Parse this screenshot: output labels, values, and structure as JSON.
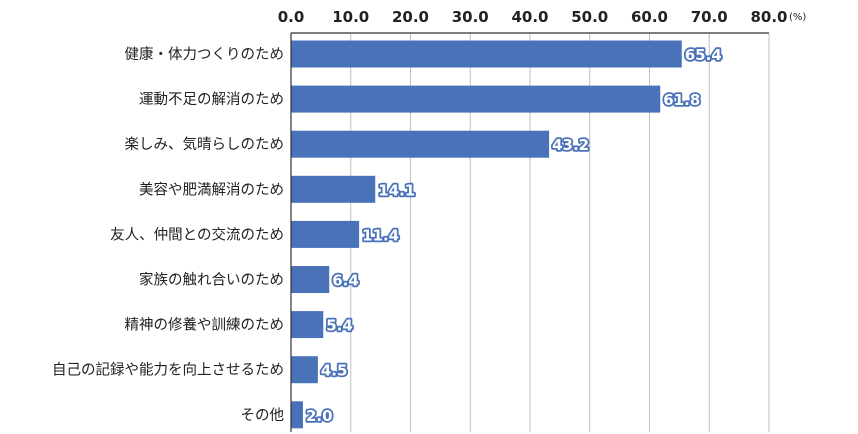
{
  "chart_data": {
    "type": "bar",
    "orientation": "horizontal",
    "categories": [
      "健康・体力つくりのため",
      "運動不足の解消のため",
      "楽しみ、気晴らしのため",
      "美容や肥満解消のため",
      "友人、仲間との交流のため",
      "家族の触れ合いのため",
      "精神の修養や訓練のため",
      "自己の記録や能力を向上させるため",
      "その他"
    ],
    "values": [
      65.4,
      61.8,
      43.2,
      14.1,
      11.4,
      6.4,
      5.4,
      4.5,
      2.0
    ],
    "value_labels": [
      "65.4",
      "61.8",
      "43.2",
      "14.1",
      "11.4",
      "6.4",
      "5.4",
      "4.5",
      "2.0"
    ],
    "xlim": [
      0,
      80
    ],
    "ticks": [
      0,
      10,
      20,
      30,
      40,
      50,
      60,
      70,
      80
    ],
    "tick_labels": [
      "0.0",
      "10.0",
      "20.0",
      "30.0",
      "40.0",
      "50.0",
      "60.0",
      "70.0",
      "80.0"
    ],
    "unit": "(%)",
    "axis_position": "top",
    "grid": true,
    "bar_color": "#4a72b8",
    "grid_color": "#bfbfbf"
  }
}
